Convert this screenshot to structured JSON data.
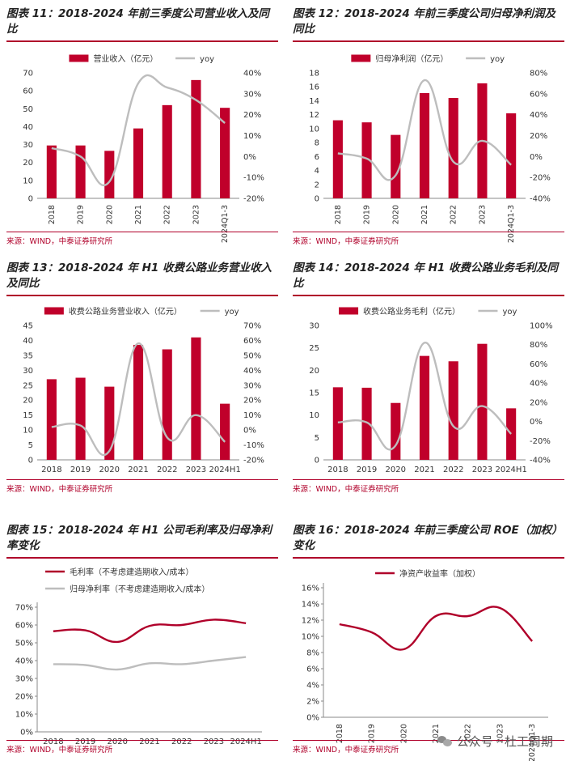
{
  "colors": {
    "bar": "#c0002b",
    "line": "#bdbdbd",
    "accent": "#b0002a",
    "line2": "#bdbdbd"
  },
  "source": "来源：WIND，中泰证券研究所",
  "watermark": "公众号 · 杜工周期",
  "watermark_icon": "wechat-icon",
  "panels": [
    {
      "title": "图表 11：2018-2024 年前三季度公司营业收入及同比",
      "chart_data": {
        "type": "bar",
        "categories": [
          "2018",
          "2019",
          "2020",
          "2021",
          "2022",
          "2023",
          "2024Q1-3"
        ],
        "series": [
          {
            "name": "营业收入（亿元）",
            "kind": "bar",
            "axis": "left",
            "values": [
              29.5,
              29.5,
              26.5,
              39,
              52,
              66,
              50.5
            ]
          },
          {
            "name": "yoy",
            "kind": "line",
            "axis": "right",
            "values": [
              4,
              0,
              -12,
              35,
              33,
              27,
              16
            ]
          }
        ],
        "ylim": [
          0,
          70
        ],
        "y2lim": [
          -20,
          40
        ],
        "yticks": [
          "0",
          "10",
          "20",
          "30",
          "40",
          "50",
          "60",
          "70"
        ],
        "y2ticks": [
          "-20%",
          "-10%",
          "0%",
          "10%",
          "20%",
          "30%",
          "40%"
        ],
        "xrotate": true,
        "legend": "top"
      }
    },
    {
      "title": "图表 12：2018-2024 年前三季度公司归母净利润及同比",
      "chart_data": {
        "type": "bar",
        "categories": [
          "2018",
          "2019",
          "2020",
          "2021",
          "2022",
          "2023",
          "2024Q1-3"
        ],
        "series": [
          {
            "name": "归母净利润（亿元）",
            "kind": "bar",
            "axis": "left",
            "values": [
              11.2,
              10.9,
              9.1,
              15.1,
              14.4,
              16.5,
              12.2
            ]
          },
          {
            "name": "yoy",
            "kind": "line",
            "axis": "right",
            "values": [
              3,
              -2,
              -18,
              73,
              -5,
              15,
              -8
            ]
          }
        ],
        "ylim": [
          0,
          18
        ],
        "y2lim": [
          -40,
          80
        ],
        "yticks": [
          "0",
          "2",
          "4",
          "6",
          "8",
          "10",
          "12",
          "14",
          "16",
          "18"
        ],
        "y2ticks": [
          "-40%",
          "-20%",
          "0%",
          "20%",
          "40%",
          "60%",
          "80%"
        ],
        "xrotate": true,
        "legend": "top"
      }
    },
    {
      "title": "图表 13：2018-2024 年 H1 收费公路业务营业收入及同比",
      "chart_data": {
        "type": "bar",
        "categories": [
          "2018",
          "2019",
          "2020",
          "2021",
          "2022",
          "2023",
          "2024H1"
        ],
        "series": [
          {
            "name": "收费公路业务营业收入（亿元）",
            "kind": "bar",
            "axis": "left",
            "values": [
              27,
              27.5,
              24.5,
              38.5,
              37,
              41,
              18.8
            ]
          },
          {
            "name": "yoy",
            "kind": "line",
            "axis": "right",
            "values": [
              2,
              3,
              -14,
              58,
              -5,
              10,
              -8
            ]
          }
        ],
        "ylim": [
          0,
          45
        ],
        "y2lim": [
          -20,
          70
        ],
        "yticks": [
          "0",
          "5",
          "10",
          "15",
          "20",
          "25",
          "30",
          "35",
          "40",
          "45"
        ],
        "y2ticks": [
          "-20%",
          "-10%",
          "0%",
          "10%",
          "20%",
          "30%",
          "40%",
          "50%",
          "60%",
          "70%"
        ],
        "xrotate": false,
        "legend": "top"
      }
    },
    {
      "title": "图表 14：2018-2024 年 H1 收费公路业务毛利及同比",
      "chart_data": {
        "type": "bar",
        "categories": [
          "2018",
          "2019",
          "2020",
          "2021",
          "2022",
          "2023",
          "2024H1"
        ],
        "series": [
          {
            "name": "收费公路业务毛利（亿元）",
            "kind": "bar",
            "axis": "left",
            "values": [
              16.2,
              16.1,
              12.7,
              23.2,
              22,
              25.9,
              11.5
            ]
          },
          {
            "name": "yoy",
            "kind": "line",
            "axis": "right",
            "values": [
              -1,
              -1,
              -25,
              82,
              -5,
              16,
              -13
            ]
          }
        ],
        "ylim": [
          0,
          30
        ],
        "y2lim": [
          -40,
          100
        ],
        "yticks": [
          "0",
          "5",
          "10",
          "15",
          "20",
          "25",
          "30"
        ],
        "y2ticks": [
          "-40%",
          "-20%",
          "0%",
          "20%",
          "40%",
          "60%",
          "80%",
          "100%"
        ],
        "xrotate": false,
        "legend": "top"
      }
    },
    {
      "title": "图表 15：2018-2024 年 H1 公司毛利率及归母净利率变化",
      "chart_data": {
        "type": "line",
        "categories": [
          "2018",
          "2019",
          "2020",
          "2021",
          "2022",
          "2023",
          "2024H1"
        ],
        "series": [
          {
            "name": "毛利率（不考虑建造期收入/成本）",
            "kind": "line",
            "color": "#b0002a",
            "values": [
              56.5,
              57,
              50.5,
              59.5,
              60,
              63,
              61
            ]
          },
          {
            "name": "归母净利率（不考虑建造期收入/成本）",
            "kind": "line",
            "color": "#bdbdbd",
            "values": [
              38,
              37.5,
              35,
              38.5,
              38,
              40,
              42
            ]
          }
        ],
        "ylim": [
          0,
          70
        ],
        "yticks": [
          "0%",
          "10%",
          "20%",
          "30%",
          "40%",
          "50%",
          "60%",
          "70%"
        ],
        "xrotate": false,
        "legend": "top-left"
      }
    },
    {
      "title": "图表 16：2018-2024 年前三季度公司 ROE（加权）变化",
      "chart_data": {
        "type": "line",
        "categories": [
          "2018",
          "2019",
          "2020",
          "2021",
          "2022",
          "2023",
          "2024Q1-3"
        ],
        "series": [
          {
            "name": "净资产收益率（加权）",
            "kind": "line",
            "color": "#b0002a",
            "values": [
              11.5,
              10.5,
              8.4,
              12.5,
              12.5,
              13.5,
              9.4
            ]
          }
        ],
        "ylim": [
          0,
          16
        ],
        "yticks": [
          "0%",
          "2%",
          "4%",
          "6%",
          "8%",
          "10%",
          "12%",
          "14%",
          "16%"
        ],
        "xrotate": true,
        "legend": "top"
      }
    }
  ]
}
